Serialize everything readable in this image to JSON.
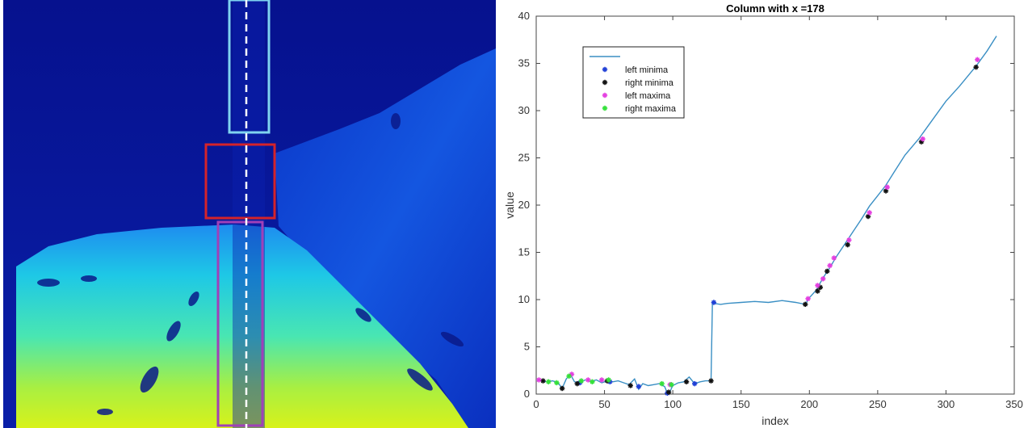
{
  "heatmap_panel": {
    "image_name": "depth-heatmap",
    "colors": {
      "deep": "#06118e",
      "mid": "#0a2fc9",
      "light": "#1ea0f0",
      "cyan": "#25d8d2",
      "yellow": "#d8f21a",
      "box_top": "#7fd3f0",
      "box_middle": "#d4232a",
      "box_bottom": "#a040b8",
      "center_line": "#ffffff"
    }
  },
  "chart_data": {
    "type": "line",
    "title": "Column with x =178",
    "xlabel": "index",
    "ylabel": "value",
    "xlim": [
      0,
      350
    ],
    "ylim": [
      0,
      40
    ],
    "xticks": [
      0,
      50,
      100,
      150,
      200,
      250,
      300,
      350
    ],
    "yticks": [
      0,
      5,
      10,
      15,
      20,
      25,
      30,
      35,
      40
    ],
    "grid": false,
    "legend_position": "top-left",
    "series": [
      {
        "name": "",
        "color": "#3a8fc4",
        "x": [
          0,
          4,
          8,
          12,
          16,
          19,
          22,
          25,
          28,
          32,
          36,
          40,
          44,
          48,
          52,
          56,
          60,
          64,
          68,
          72,
          75,
          78,
          82,
          86,
          90,
          94,
          96,
          98,
          100,
          104,
          108,
          112,
          116,
          120,
          124,
          128,
          129,
          130,
          135,
          140,
          150,
          160,
          170,
          180,
          190,
          197,
          200,
          205,
          210,
          215,
          220,
          226,
          232,
          238,
          244,
          250,
          256,
          262,
          270,
          280,
          290,
          300,
          310,
          322,
          330,
          337
        ],
        "y": [
          1.5,
          1.4,
          1.3,
          1.4,
          1.2,
          0.6,
          1.6,
          2.1,
          1.3,
          1.2,
          1.5,
          1.3,
          1.5,
          1.2,
          1.4,
          1.3,
          1.4,
          1.2,
          1.0,
          1.6,
          0.5,
          1.1,
          0.9,
          1.0,
          1.1,
          0.8,
          0.1,
          0.3,
          0.9,
          1.2,
          1.3,
          1.8,
          1.1,
          1.3,
          1.4,
          1.4,
          9.7,
          9.6,
          9.5,
          9.6,
          9.7,
          9.8,
          9.7,
          9.9,
          9.7,
          9.5,
          10.2,
          11.0,
          12.3,
          13.4,
          14.6,
          15.9,
          17.2,
          18.5,
          19.9,
          21.0,
          22.1,
          23.5,
          25.3,
          27.0,
          29.0,
          31.0,
          32.6,
          34.7,
          36.3,
          37.9
        ]
      },
      {
        "name": "left minima",
        "color": "#1f3fd6",
        "marker": "*",
        "x": [
          32,
          54,
          75,
          96,
          116,
          130
        ],
        "y": [
          1.2,
          1.3,
          0.8,
          0.1,
          1.1,
          9.7
        ]
      },
      {
        "name": "right minima",
        "color": "#111111",
        "marker": "*",
        "x": [
          5,
          19,
          30,
          52,
          69,
          97,
          110,
          128,
          197,
          206,
          208,
          213,
          228,
          243,
          256,
          282,
          322
        ],
        "y": [
          1.4,
          0.6,
          1.1,
          1.4,
          0.9,
          0.2,
          1.3,
          1.4,
          9.5,
          10.9,
          11.3,
          13.0,
          15.8,
          18.8,
          21.5,
          26.7,
          34.6
        ]
      },
      {
        "name": "left maxima",
        "color": "#e43fe0",
        "marker": "*",
        "x": [
          2,
          26,
          38,
          48,
          98,
          199,
          206,
          210,
          215,
          218,
          229,
          244,
          257,
          283,
          323
        ],
        "y": [
          1.5,
          2.1,
          1.5,
          1.5,
          1.0,
          10.1,
          11.5,
          12.2,
          13.6,
          14.4,
          16.3,
          19.2,
          21.9,
          27.0,
          35.4
        ]
      },
      {
        "name": "right maxima",
        "color": "#35e03a",
        "marker": "*",
        "x": [
          9,
          15,
          24,
          33,
          41,
          53,
          92,
          99
        ],
        "y": [
          1.3,
          1.2,
          1.9,
          1.4,
          1.3,
          1.5,
          1.1,
          1.0
        ]
      }
    ]
  }
}
